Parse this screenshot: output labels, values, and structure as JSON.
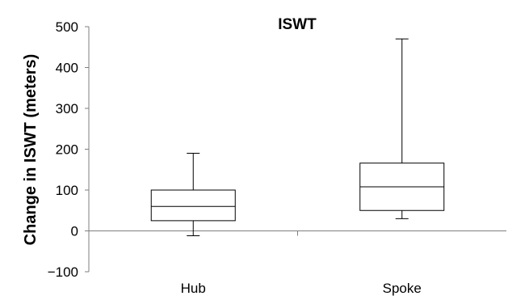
{
  "chart_data": {
    "type": "box",
    "title": "ISWT",
    "xlabel": "",
    "ylabel": "Change in ISWT (meters)",
    "ylim": [
      -100,
      500
    ],
    "yticks": [
      -100,
      0,
      100,
      200,
      300,
      400,
      500
    ],
    "ytick_labels": [
      "−100",
      "0",
      "100",
      "200",
      "300",
      "400",
      "500"
    ],
    "grid": false,
    "categories": [
      "Hub",
      "Spoke"
    ],
    "boxes": [
      {
        "category": "Hub",
        "min": -12,
        "q1": 25,
        "median": 60,
        "q3": 100,
        "max": 190
      },
      {
        "category": "Spoke",
        "min": 30,
        "q1": 50,
        "median": 108,
        "q3": 166,
        "max": 470
      }
    ],
    "colors": {
      "box_fill": "#ffffff",
      "stroke": "#000000",
      "axis": "#7f7f7f"
    }
  }
}
